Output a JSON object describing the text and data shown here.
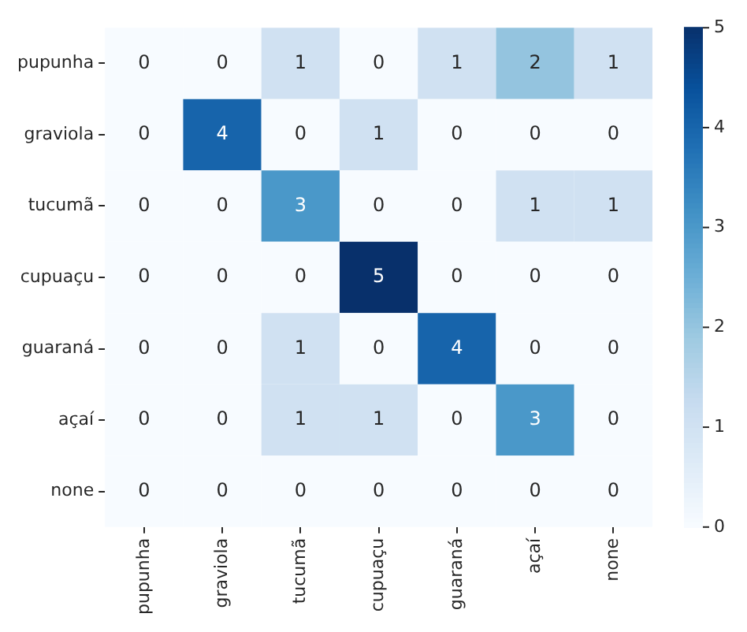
{
  "chart_data": {
    "type": "heatmap",
    "categories": [
      "pupunha",
      "graviola",
      "tucumã",
      "cupuaçu",
      "guaraná",
      "açaí",
      "none"
    ],
    "y_categories": [
      "pupunha",
      "graviola",
      "tucumã",
      "cupuaçu",
      "guaraná",
      "açaí",
      "none"
    ],
    "cells": [
      [
        0,
        0,
        1,
        0,
        1,
        2,
        1
      ],
      [
        0,
        4,
        0,
        1,
        0,
        0,
        0
      ],
      [
        0,
        0,
        3,
        0,
        0,
        1,
        1
      ],
      [
        0,
        0,
        0,
        5,
        0,
        0,
        0
      ],
      [
        0,
        0,
        1,
        0,
        4,
        0,
        0
      ],
      [
        0,
        0,
        1,
        1,
        0,
        3,
        0
      ],
      [
        0,
        0,
        0,
        0,
        0,
        0,
        0
      ]
    ],
    "clim": [
      0,
      5
    ],
    "cticks": [
      0,
      1,
      2,
      3,
      4,
      5
    ],
    "data_labels": true
  }
}
